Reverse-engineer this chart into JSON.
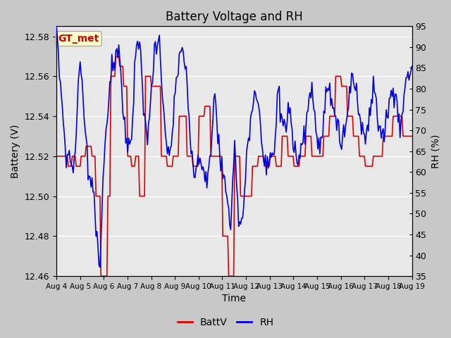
{
  "title": "Battery Voltage and RH",
  "xlabel": "Time",
  "ylabel_left": "Battery (V)",
  "ylabel_right": "RH (%)",
  "ylim_left": [
    12.46,
    12.585
  ],
  "ylim_right": [
    35,
    95
  ],
  "yticks_left": [
    12.46,
    12.48,
    12.5,
    12.52,
    12.54,
    12.56,
    12.58
  ],
  "yticks_right": [
    35,
    40,
    45,
    50,
    55,
    60,
    65,
    70,
    75,
    80,
    85,
    90,
    95
  ],
  "x_labels": [
    "Aug 4",
    "Aug 5",
    "Aug 6",
    "Aug 7",
    "Aug 8",
    "Aug 9",
    "Aug 10",
    "Aug 11",
    "Aug 12",
    "Aug 13",
    "Aug 14",
    "Aug 15",
    "Aug 16",
    "Aug 17",
    "Aug 18",
    "Aug 19"
  ],
  "annotation_text": "GT_met",
  "annotation_color": "#cc0000",
  "annotation_bg": "#ffffcc",
  "fig_bg": "#c8c8c8",
  "plot_bg": "#e8e8e8",
  "grid_color": "#ffffff",
  "line_color_batt": "#dd0000",
  "line_color_rh": "#0000dd",
  "legend_label_batt": "BattV",
  "legend_label_rh": "RH",
  "title_fontsize": 12,
  "axis_label_fontsize": 10,
  "tick_fontsize": 9,
  "legend_fontsize": 10
}
